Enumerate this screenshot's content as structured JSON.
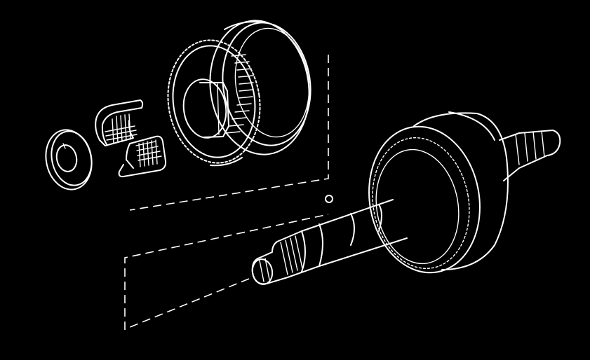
{
  "diagram": {
    "background": "#000000",
    "line_color": "#ffffff",
    "parts": [
      "thrust-washer",
      "split-needle-bearing-upper",
      "split-needle-bearing-lower",
      "clutch-drum",
      "output-shaft-assembly",
      "check-ball"
    ]
  }
}
